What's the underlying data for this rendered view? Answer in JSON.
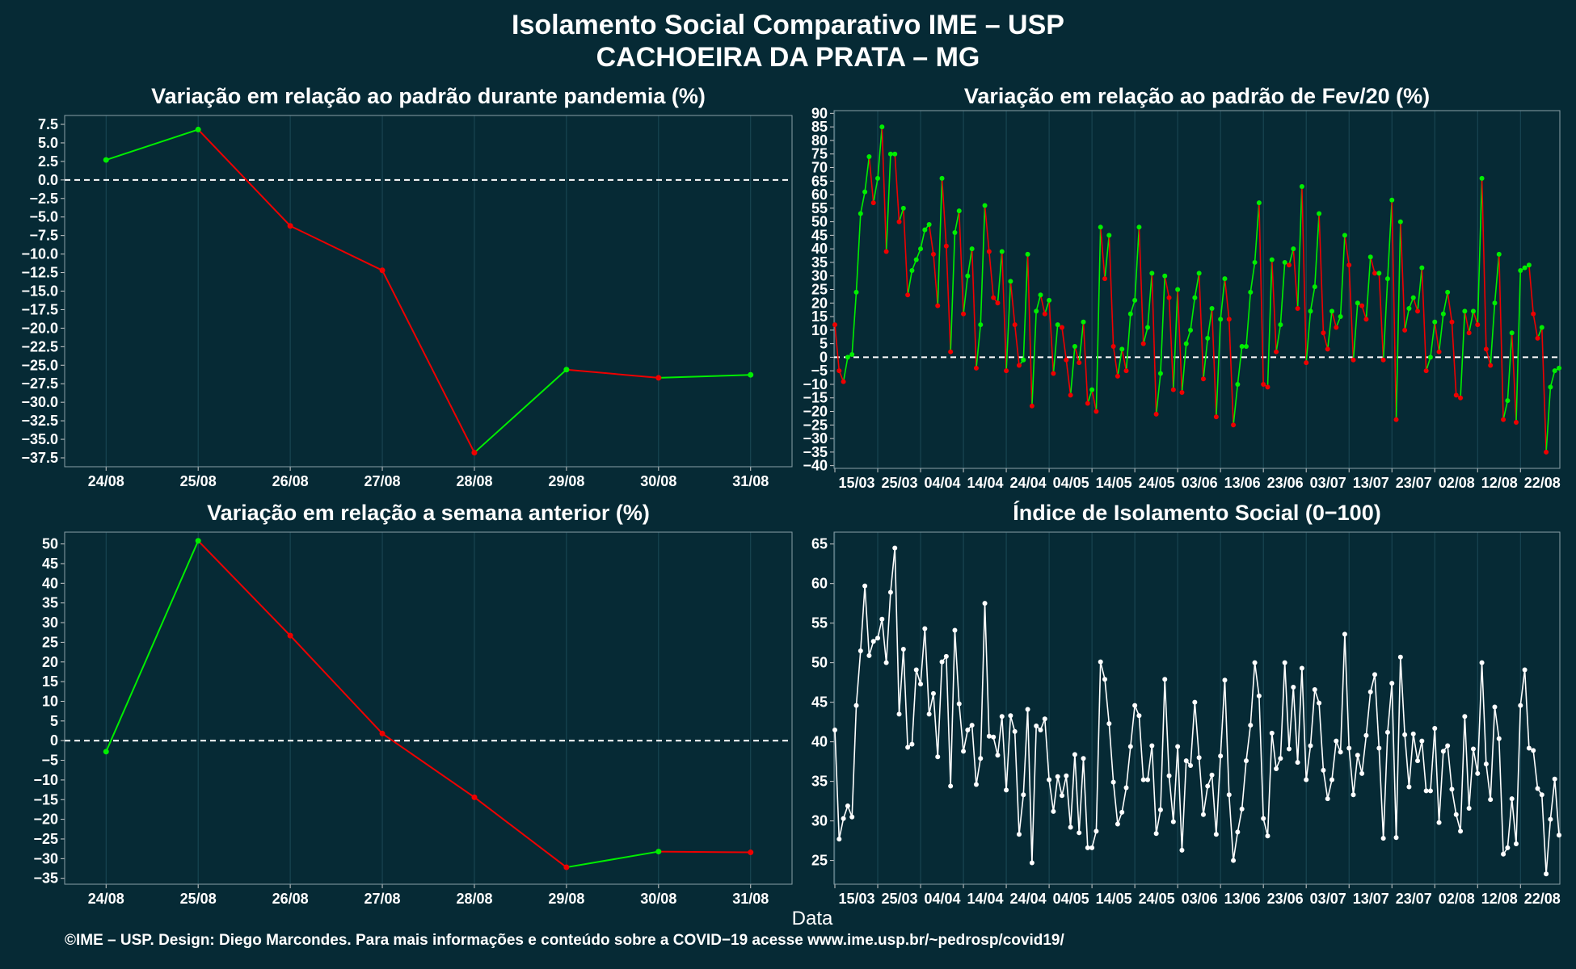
{
  "title_line1": "Isolamento Social Comparativo IME – USP",
  "title_line2": "CACHOEIRA DA PRATA – MG",
  "xlabel": "Data",
  "footer": "©IME – USP. Design: Diego Marcondes. Para mais informações e conteúdo sobre a COVID−19 acesse www.ime.usp.br/~pedrosp/covid19/",
  "colors": {
    "background": "#062a35",
    "positive": "#00ee00",
    "negative": "#ee0000",
    "index": "#ffffff",
    "grid": "#1c4a57"
  },
  "chart_data": [
    {
      "id": "p1",
      "type": "line",
      "title": "Variação em relação ao padrão durante pandemia (%)",
      "categories": [
        "24/08",
        "25/08",
        "26/08",
        "27/08",
        "28/08",
        "29/08",
        "30/08",
        "31/08"
      ],
      "values": [
        2.7,
        6.8,
        -6.2,
        -12.2,
        -36.8,
        -25.6,
        -26.7,
        -26.3
      ],
      "ylim": [
        -38.7,
        8.7
      ],
      "yticks": [
        "7.5",
        "5.0",
        "2.5",
        "0.0",
        "−2.5",
        "−5.0",
        "−7.5",
        "−10.0",
        "−12.5",
        "−15.0",
        "−17.5",
        "−20.0",
        "−22.5",
        "−25.0",
        "−27.5",
        "−30.0",
        "−32.5",
        "−35.0",
        "−37.5"
      ],
      "ytick_values": [
        7.5,
        5,
        2.5,
        0,
        -2.5,
        -5,
        -7.5,
        -10,
        -12.5,
        -15,
        -17.5,
        -20,
        -22.5,
        -25,
        -27.5,
        -30,
        -32.5,
        -35,
        -37.5
      ],
      "reference_line": 0,
      "color_rule": "segment green if value rises, red if falls"
    },
    {
      "id": "p2",
      "type": "line",
      "title": "Variação em relação ao padrão de Fev/20 (%)",
      "start_label": "15/03",
      "xtick_labels": [
        "15/03",
        "25/03",
        "04/04",
        "14/04",
        "24/04",
        "04/05",
        "14/05",
        "24/05",
        "03/06",
        "13/06",
        "23/06",
        "03/07",
        "13/07",
        "23/07",
        "02/08",
        "12/08",
        "22/08"
      ],
      "values": [
        12,
        -5,
        -9,
        0,
        1,
        24,
        53,
        61,
        74,
        57,
        66,
        85,
        39,
        75,
        75,
        50,
        55,
        23,
        32,
        36,
        40,
        47,
        49,
        38,
        19,
        66,
        41,
        2,
        46,
        54,
        16,
        30,
        40,
        -4,
        12,
        56,
        39,
        22,
        20,
        39,
        -5,
        28,
        12,
        -3,
        -1,
        38,
        -18,
        17,
        23,
        16,
        21,
        -6,
        12,
        11,
        -1,
        -14,
        4,
        -2,
        13,
        -17,
        -12,
        -20,
        48,
        29,
        45,
        4,
        -7,
        3,
        -5,
        16,
        21,
        48,
        5,
        11,
        31,
        -21,
        -6,
        30,
        22,
        -12,
        25,
        -13,
        5,
        10,
        22,
        31,
        -8,
        7,
        18,
        -22,
        14,
        29,
        14,
        -25,
        -10,
        4,
        4,
        24,
        35,
        57,
        -10,
        -11,
        36,
        2,
        12,
        35,
        34,
        40,
        18,
        63,
        -2,
        17,
        26,
        53,
        9,
        3,
        17,
        11,
        15,
        45,
        34,
        -1,
        20,
        19,
        14,
        37,
        31,
        31,
        -1,
        29,
        58,
        -23,
        50,
        10,
        18,
        22,
        17,
        33,
        -5,
        0,
        13,
        2,
        16,
        24,
        13,
        -14,
        -15,
        17,
        9,
        17,
        12,
        66,
        3,
        -3,
        20,
        38,
        -23,
        -16,
        9,
        -24,
        32,
        33,
        34,
        16,
        7,
        11,
        -35,
        -11,
        -5,
        -4
      ],
      "ylim": [
        -41,
        91
      ],
      "yticks": [
        "90",
        "85",
        "80",
        "75",
        "70",
        "65",
        "60",
        "55",
        "50",
        "45",
        "40",
        "35",
        "30",
        "25",
        "20",
        "15",
        "10",
        "5",
        "0",
        "−5",
        "−10",
        "−15",
        "−20",
        "−25",
        "−30",
        "−35",
        "−40"
      ],
      "ytick_values": [
        90,
        85,
        80,
        75,
        70,
        65,
        60,
        55,
        50,
        45,
        40,
        35,
        30,
        25,
        20,
        15,
        10,
        5,
        0,
        -5,
        -10,
        -15,
        -20,
        -25,
        -30,
        -35,
        -40
      ],
      "reference_line": 0
    },
    {
      "id": "p3",
      "type": "line",
      "title": "Variação em relação a semana anterior (%)",
      "categories": [
        "24/08",
        "25/08",
        "26/08",
        "27/08",
        "28/08",
        "29/08",
        "30/08",
        "31/08"
      ],
      "values": [
        -2.8,
        50.8,
        26.7,
        1.8,
        -14.4,
        -32.2,
        -28.2,
        -28.4
      ],
      "ylim": [
        -36.5,
        53
      ],
      "yticks": [
        "50",
        "45",
        "40",
        "35",
        "30",
        "25",
        "20",
        "15",
        "10",
        "5",
        "0",
        "−5",
        "−10",
        "−15",
        "−20",
        "−25",
        "−30",
        "−35"
      ],
      "ytick_values": [
        50,
        45,
        40,
        35,
        30,
        25,
        20,
        15,
        10,
        5,
        0,
        -5,
        -10,
        -15,
        -20,
        -25,
        -30,
        -35
      ],
      "reference_line": 0
    },
    {
      "id": "p4",
      "type": "line",
      "title": "Índice de Isolamento Social (0−100)",
      "xtick_labels": [
        "15/03",
        "25/03",
        "04/04",
        "14/04",
        "24/04",
        "04/05",
        "14/05",
        "24/05",
        "03/06",
        "13/06",
        "23/06",
        "03/07",
        "13/07",
        "23/07",
        "02/08",
        "12/08",
        "22/08"
      ],
      "values": [
        41.5,
        27.7,
        30.3,
        31.9,
        30.5,
        44.6,
        51.5,
        59.7,
        50.9,
        52.7,
        53.1,
        55.5,
        50.0,
        58.9,
        64.5,
        43.5,
        51.7,
        39.3,
        39.7,
        49.1,
        47.3,
        54.3,
        43.5,
        46.1,
        38.1,
        50.1,
        50.8,
        34.4,
        54.1,
        44.8,
        38.8,
        41.5,
        42.1,
        34.6,
        37.9,
        57.5,
        40.7,
        40.6,
        38.3,
        43.2,
        33.9,
        43.3,
        41.3,
        28.3,
        33.3,
        44.1,
        24.7,
        42.0,
        41.5,
        42.9,
        35.2,
        31.2,
        35.6,
        33.2,
        35.7,
        29.2,
        38.4,
        28.5,
        37.9,
        26.6,
        26.6,
        28.7,
        50.1,
        47.9,
        42.3,
        34.9,
        29.6,
        31.1,
        34.2,
        39.4,
        44.6,
        43.3,
        35.2,
        35.2,
        39.5,
        28.4,
        31.4,
        47.9,
        35.7,
        29.9,
        39.4,
        26.3,
        37.6,
        37.0,
        45.0,
        38.0,
        30.8,
        34.4,
        35.8,
        28.3,
        38.2,
        47.8,
        33.3,
        25.0,
        28.6,
        31.5,
        37.6,
        42.1,
        50.0,
        45.8,
        30.3,
        28.1,
        41.1,
        36.6,
        37.9,
        50.0,
        39.1,
        46.9,
        37.4,
        49.3,
        35.2,
        39.5,
        46.6,
        44.9,
        36.4,
        32.8,
        35.2,
        40.1,
        38.7,
        53.6,
        39.2,
        33.3,
        38.3,
        36.0,
        40.8,
        46.3,
        48.5,
        39.2,
        27.8,
        41.2,
        47.4,
        27.9,
        50.7,
        40.9,
        34.3,
        41.0,
        37.6,
        40.1,
        33.8,
        33.8,
        41.7,
        29.8,
        38.8,
        39.5,
        34.0,
        30.8,
        28.7,
        43.2,
        31.6,
        39.1,
        36.0,
        50.0,
        37.2,
        32.7,
        44.4,
        40.4,
        25.8,
        26.6,
        32.8,
        27.1,
        44.6,
        49.1,
        39.2,
        38.9,
        34.1,
        33.3,
        23.3,
        30.2,
        35.3,
        28.2
      ],
      "ylim": [
        22,
        66.5
      ],
      "yticks": [
        "65",
        "60",
        "55",
        "50",
        "45",
        "40",
        "35",
        "30",
        "25"
      ],
      "ytick_values": [
        65,
        60,
        55,
        50,
        45,
        40,
        35,
        30,
        25
      ]
    }
  ]
}
